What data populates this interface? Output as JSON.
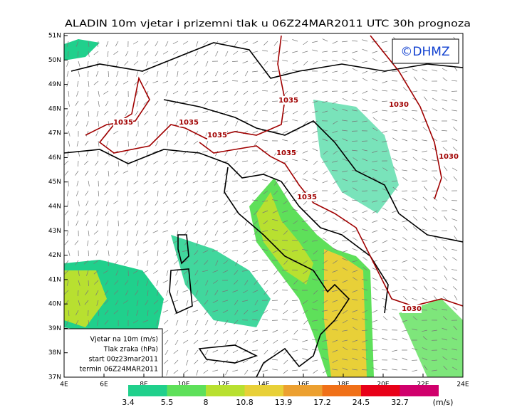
{
  "title": "ALADIN 10m vjetar i prizemni tlak u 06Z24MAR2011 UTC 30h prognoza",
  "logo": "©DHMZ",
  "latitude_labels": [
    "51N",
    "50N",
    "49N",
    "48N",
    "47N",
    "46N",
    "45N",
    "44N",
    "43N",
    "42N",
    "41N",
    "40N",
    "39N",
    "38N",
    "37N"
  ],
  "longitude_labels": [
    "4E",
    "6E",
    "8E",
    "10E",
    "12E",
    "14E",
    "16E",
    "18E",
    "20E",
    "22E",
    "24E"
  ],
  "legend_box": {
    "lines": [
      "Vjetar na 10m (m/s)",
      "Tlak zraka (hPa)",
      "start 00z23mar2011",
      "termin 06Z24MAR2011"
    ]
  },
  "isobar_labels": [
    "1035",
    "1035",
    "1035",
    "1035",
    "1035",
    "1035",
    "1030",
    "1030",
    "1030"
  ],
  "colorbar": {
    "values": [
      "3.4",
      "5.5",
      "8",
      "10.8",
      "13.9",
      "17.2",
      "24.5",
      "32.7"
    ],
    "unit": "(m/s)",
    "colors": [
      "#20d08c",
      "#5ee05a",
      "#b8e030",
      "#e8d038",
      "#eca030",
      "#f07018",
      "#e80018",
      "#d0006c",
      "#9810c8"
    ]
  }
}
